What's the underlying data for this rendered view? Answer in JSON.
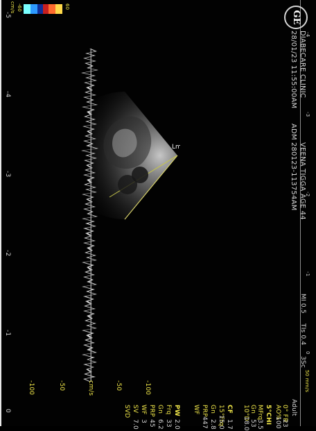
{
  "header": {
    "logo": "GE",
    "clinic": "DIABECARE CLINIC",
    "datetime": "28/01/23 11:55:00AM",
    "patient": "VEENA TIGGA AGE 44",
    "adm_label": "ADM",
    "study_id": "280123-113754AM",
    "mi_label": "MI 0.5",
    "tis_label": "TIs 0.4",
    "frame_label": "3Sc",
    "preset": "Adult"
  },
  "right_panel": {
    "upper": [
      {
        "label": "0° FR",
        "value": "23"
      },
      {
        "label": "AO%",
        "value": "100"
      },
      {
        "label": "5°CHI",
        "value": ""
      },
      {
        "label": "MFrq",
        "value": "3.5"
      },
      {
        "label": "Gn",
        "value": "53"
      },
      {
        "label": "10°D",
        "value": "18.0"
      }
    ],
    "middle": [
      {
        "label": "CF",
        "value": "1.7"
      },
      {
        "label": "15°Frq",
        "value": "15.0"
      },
      {
        "label": "Gn",
        "value": "2.8"
      },
      {
        "label": "PRP",
        "value": "447"
      },
      {
        "label": "WF",
        "value": ""
      }
    ],
    "lower": [
      {
        "label": "PW",
        "value": "2.0"
      },
      {
        "label": "Frq",
        "value": "33"
      },
      {
        "label": "Gn",
        "value": "6.2"
      },
      {
        "label": "PRP",
        "value": "45"
      },
      {
        "label": "WF",
        "value": "3"
      },
      {
        "label": "SV",
        "value": "7.0"
      },
      {
        "label": "SVD",
        "value": ""
      }
    ]
  },
  "velocity_scale": {
    "ticks": [
      "-100",
      "-50",
      "cm/s",
      "-50",
      "-100"
    ]
  },
  "timeline": {
    "top_ticks": [
      "-4",
      "-3",
      "-2",
      "-1",
      "0"
    ],
    "bottom_ticks": [
      "-5",
      "-4",
      "-3",
      "-2",
      "-1",
      "0"
    ],
    "speed": "50 mm/s"
  },
  "color_scale": {
    "top": "60",
    "bottom": "-60",
    "unit": "cm/s"
  },
  "image_annotation": "Lmag"
}
